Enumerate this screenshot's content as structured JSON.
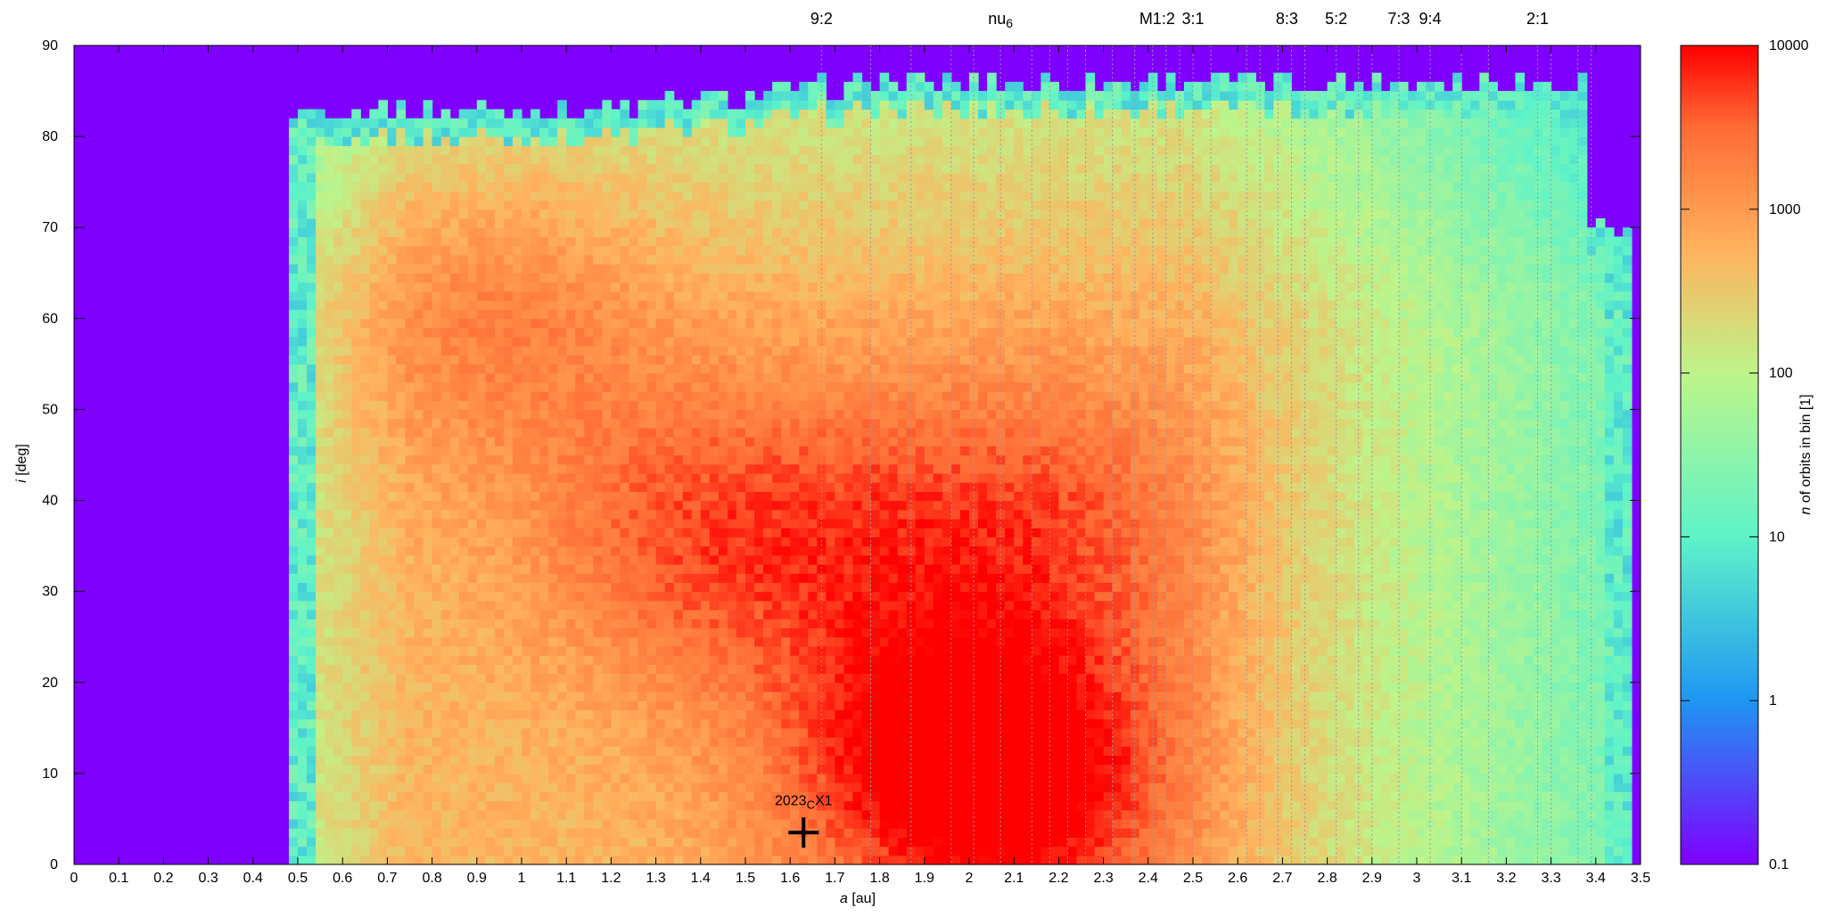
{
  "chart_data": {
    "type": "heatmap",
    "xlabel": {
      "var": "a",
      "unit": "[au]"
    },
    "ylabel": {
      "var": "i",
      "unit": "[deg]"
    },
    "colorbar_label": {
      "var": "n",
      "rest": "of orbits in bin [1]"
    },
    "xlim": [
      0,
      3.5
    ],
    "ylim": [
      0,
      90
    ],
    "x_ticks": [
      "0",
      "0.1",
      "0.2",
      "0.3",
      "0.4",
      "0.5",
      "0.6",
      "0.7",
      "0.8",
      "0.9",
      "1",
      "1.1",
      "1.2",
      "1.3",
      "1.4",
      "1.5",
      "1.6",
      "1.7",
      "1.8",
      "1.9",
      "2",
      "2.1",
      "2.2",
      "2.3",
      "2.4",
      "2.5",
      "2.6",
      "2.7",
      "2.8",
      "2.9",
      "3",
      "3.1",
      "3.2",
      "3.3",
      "3.4",
      "3.5"
    ],
    "y_ticks": [
      "0",
      "10",
      "20",
      "30",
      "40",
      "50",
      "60",
      "70",
      "80",
      "90"
    ],
    "colorbar": {
      "scale": "log",
      "range": [
        0.1,
        10000
      ],
      "ticks": [
        "0.1",
        "1",
        "10",
        "100",
        "1000",
        "10000"
      ],
      "colors": [
        "#7f00ff",
        "#1f96f3",
        "#5ef3c8",
        "#bef48a",
        "#ffb25e",
        "#ff6b35",
        "#ff0000"
      ]
    },
    "populated_region": {
      "a_min": 0.48,
      "a_max": 3.48,
      "i_top_inner": 83,
      "i_top_outer": 86,
      "i_top_edge": 70,
      "outer_cut_a": 3.38
    },
    "hotspots": [
      {
        "a": 2.15,
        "i": 9,
        "log_level": 3.85
      },
      {
        "a": 1.85,
        "i": 12,
        "log_level": 3.55
      },
      {
        "a": 2.25,
        "i": 38,
        "log_level": 3.35
      },
      {
        "a": 1.38,
        "i": 36,
        "log_level": 3.45
      },
      {
        "a": 1.82,
        "i": 38,
        "log_level": 3.3
      },
      {
        "a": 0.95,
        "i": 60,
        "log_level": 3.2
      },
      {
        "a": 3.14,
        "i": 34,
        "log_level": 2.2
      }
    ],
    "resonances": [
      {
        "label": "9:2",
        "a": 1.67
      },
      {
        "label": "nu",
        "sub": "6",
        "a": 2.07
      },
      {
        "label": "M1:2",
        "a": 2.42
      },
      {
        "label": "3:1",
        "a": 2.5
      },
      {
        "label": "8:3",
        "a": 2.71
      },
      {
        "label": "5:2",
        "a": 2.82
      },
      {
        "label": "7:3",
        "a": 2.96
      },
      {
        "label": "9:4",
        "a": 3.03
      },
      {
        "label": "2:1",
        "a": 3.27
      }
    ],
    "resonance_lines_a": [
      1.67,
      1.78,
      1.87,
      1.96,
      2.01,
      2.07,
      2.14,
      2.18,
      2.22,
      2.26,
      2.32,
      2.37,
      2.41,
      2.44,
      2.47,
      2.5,
      2.54,
      2.62,
      2.65,
      2.69,
      2.72,
      2.75,
      2.82,
      2.87,
      2.9,
      2.96,
      3.03,
      3.1,
      3.16,
      3.27,
      3.3,
      3.36,
      3.39
    ],
    "marker": {
      "label_main": "2023",
      "label_sub": "C",
      "label_end": "X1",
      "a": 1.63,
      "i": 3.5
    }
  }
}
